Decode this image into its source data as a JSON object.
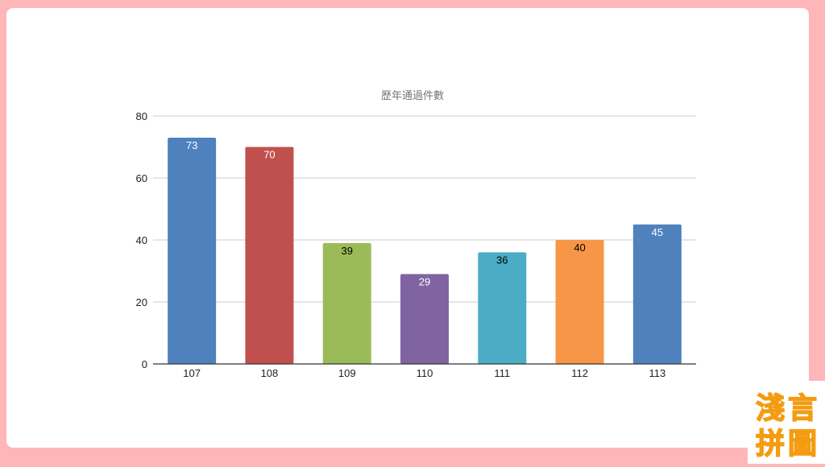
{
  "chart_data": {
    "type": "bar",
    "title": "歷年通過件數",
    "categories": [
      "107",
      "108",
      "109",
      "110",
      "111",
      "112",
      "113"
    ],
    "values": [
      73,
      70,
      39,
      29,
      36,
      40,
      45
    ],
    "bar_colors": [
      "#4f81bd",
      "#c0504d",
      "#9bbb59",
      "#8064a2",
      "#4bacc6",
      "#f79646",
      "#4f81bd"
    ],
    "label_colors": [
      "#ffffff",
      "#ffffff",
      "#000000",
      "#ffffff",
      "#000000",
      "#000000",
      "#ffffff"
    ],
    "ylim": [
      0,
      80
    ],
    "yticks": [
      0,
      20,
      40,
      60,
      80
    ],
    "grid": true,
    "legend": "none"
  },
  "logo": {
    "text_top": "淺言",
    "text_bottom": "拼圖",
    "colors": [
      "#f9c80e",
      "#f39c12"
    ]
  }
}
